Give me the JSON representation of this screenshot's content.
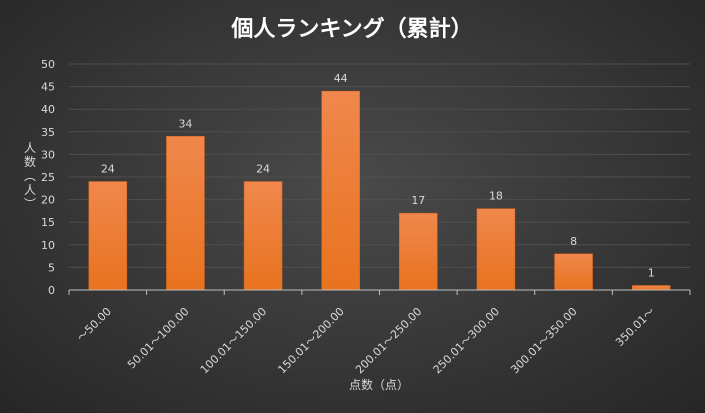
{
  "chart_data": {
    "type": "bar",
    "title": "個人ランキング（累計）",
    "xlabel": "点数（点）",
    "ylabel": "人数（人）",
    "ylim": [
      0,
      50
    ],
    "yticks": [
      0,
      5,
      10,
      15,
      20,
      25,
      30,
      35,
      40,
      45,
      50
    ],
    "categories": [
      "～50.00",
      "50.01～100.00",
      "100.01～150.00",
      "150.01～200.00",
      "200.01～250.00",
      "250.01～300.00",
      "300.01～350.00",
      "350.01～"
    ],
    "values": [
      24,
      34,
      24,
      44,
      17,
      18,
      8,
      1
    ],
    "grid": true,
    "legend": "none",
    "colors": {
      "bar_top": "#f0874c",
      "bar_bottom": "#e8731f",
      "grid": "#4f4f4f",
      "axis": "#bfbfbf"
    }
  }
}
